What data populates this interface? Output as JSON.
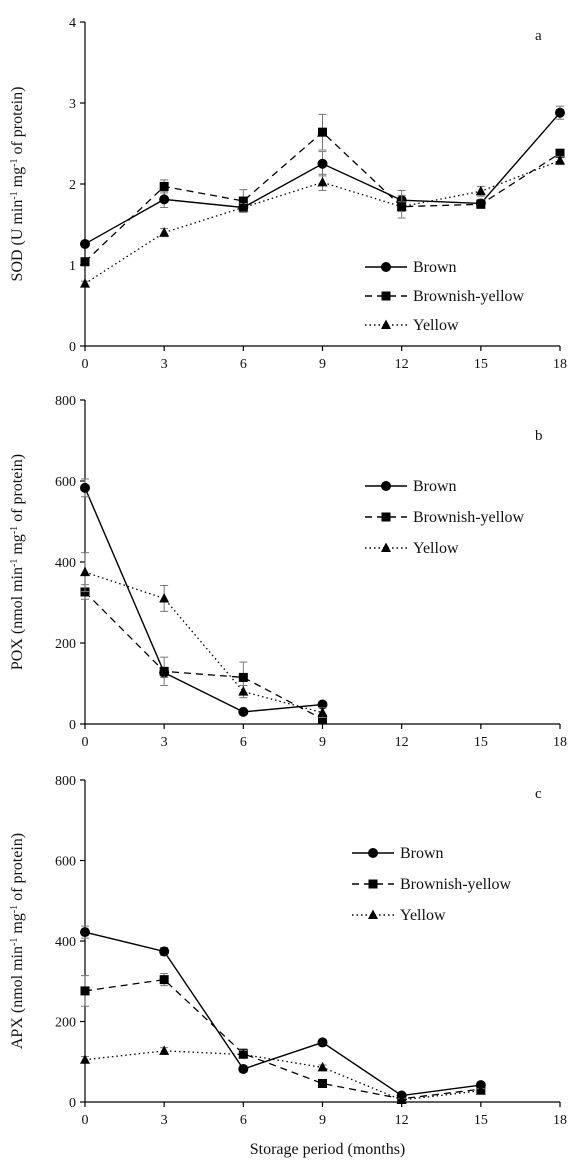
{
  "chart_data": [
    {
      "panel_label": "a",
      "type": "line",
      "ylabel_parts": [
        "SOD (U min",
        "-1",
        " mg",
        "-1",
        " of protein)"
      ],
      "x_ticks": [
        "0",
        "3",
        "6",
        "9",
        "12",
        "15",
        "18"
      ],
      "y_ticks": [
        "0",
        "1",
        "2",
        "3",
        "4"
      ],
      "xlim": [
        0,
        18
      ],
      "ylim": [
        0,
        4
      ],
      "legend_position": "lower-right",
      "series": [
        {
          "name": "Brown",
          "marker": "circle",
          "line": "solid",
          "x": [
            0,
            3,
            6,
            9,
            12,
            15,
            18
          ],
          "y": [
            1.26,
            1.81,
            1.71,
            2.25,
            1.8,
            1.76,
            2.88
          ],
          "err": [
            0.03,
            0.1,
            0.05,
            0.15,
            0.12,
            0.05,
            0.08
          ]
        },
        {
          "name": "Brownish-yellow",
          "marker": "square",
          "line": "dashed",
          "x": [
            0,
            3,
            6,
            9,
            12,
            15,
            18
          ],
          "y": [
            1.04,
            1.97,
            1.79,
            2.64,
            1.72,
            1.75,
            2.38
          ],
          "err": [
            0.04,
            0.08,
            0.14,
            0.22,
            0.14,
            0.05,
            0.05
          ]
        },
        {
          "name": "Yellow",
          "marker": "triangle",
          "line": "dotted",
          "x": [
            0,
            3,
            6,
            9,
            12,
            15,
            18
          ],
          "y": [
            0.77,
            1.4,
            1.71,
            2.02,
            1.72,
            1.91,
            2.29
          ],
          "err": [
            0.03,
            0.05,
            0.05,
            0.1,
            0.06,
            0.06,
            0.05
          ]
        }
      ]
    },
    {
      "panel_label": "b",
      "type": "line",
      "ylabel_parts": [
        "POX (nmol min",
        "-1",
        " mg",
        "-1",
        " of protein)"
      ],
      "x_ticks": [
        "0",
        "3",
        "6",
        "9",
        "12",
        "15",
        "18"
      ],
      "y_ticks": [
        "0",
        "200",
        "400",
        "600",
        "800"
      ],
      "xlim": [
        0,
        18
      ],
      "ylim": [
        0,
        800
      ],
      "legend_position": "upper-right",
      "series": [
        {
          "name": "Brown",
          "marker": "circle",
          "line": "solid",
          "x": [
            0,
            3,
            6,
            9
          ],
          "y": [
            583,
            127,
            30,
            48
          ],
          "err": [
            22,
            12,
            5,
            8
          ]
        },
        {
          "name": "Brownish-yellow",
          "marker": "square",
          "line": "dashed",
          "x": [
            0,
            3,
            6,
            9
          ],
          "y": [
            326,
            130,
            115,
            12
          ],
          "err": [
            18,
            35,
            38,
            8
          ]
        },
        {
          "name": "Yellow",
          "marker": "triangle",
          "line": "dotted",
          "x": [
            0,
            3,
            6,
            9
          ],
          "y": [
            375,
            310,
            80,
            28
          ],
          "err": [
            48,
            32,
            15,
            12
          ]
        }
      ]
    },
    {
      "panel_label": "c",
      "type": "line",
      "ylabel_parts": [
        "APX (nmol min",
        "-1",
        " mg",
        "-1",
        " of protein)"
      ],
      "x_ticks": [
        "0",
        "3",
        "6",
        "9",
        "12",
        "15",
        "18"
      ],
      "y_ticks": [
        "0",
        "200",
        "400",
        "600",
        "800"
      ],
      "xlim": [
        0,
        18
      ],
      "ylim": [
        0,
        800
      ],
      "xlabel": "Storage period (months)",
      "legend_position": "upper-right",
      "series": [
        {
          "name": "Brown",
          "marker": "circle",
          "line": "solid",
          "x": [
            0,
            3,
            6,
            9,
            12,
            15
          ],
          "y": [
            422,
            374,
            82,
            148,
            16,
            42
          ],
          "err": [
            15,
            10,
            8,
            8,
            5,
            5
          ]
        },
        {
          "name": "Brownish-yellow",
          "marker": "square",
          "line": "dashed",
          "x": [
            0,
            3,
            6,
            9,
            12,
            15
          ],
          "y": [
            276,
            304,
            120,
            46,
            8,
            32
          ],
          "err": [
            38,
            15,
            12,
            6,
            4,
            5
          ]
        },
        {
          "name": "Yellow",
          "marker": "triangle",
          "line": "dotted",
          "x": [
            0,
            3,
            6,
            9,
            12,
            15
          ],
          "y": [
            105,
            127,
            118,
            86,
            5,
            28
          ],
          "err": [
            8,
            8,
            10,
            6,
            4,
            5
          ]
        }
      ]
    }
  ]
}
